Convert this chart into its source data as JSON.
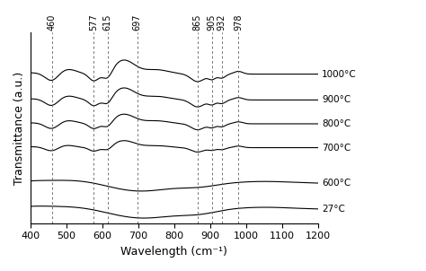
{
  "title": "",
  "xlabel": "Wavelength (cm⁻¹)",
  "ylabel": "Transmittance (a.u.)",
  "xlim": [
    400,
    1200
  ],
  "dashed_lines": [
    460,
    577,
    615,
    697,
    865,
    905,
    932,
    978
  ],
  "dashed_line_labels": [
    "460",
    "577",
    "615",
    "697",
    "865",
    "905",
    "932",
    "978"
  ],
  "temperatures": [
    "1000°C",
    "900°C",
    "800°C",
    "700°C",
    "600°C",
    "27°C"
  ],
  "offsets": [
    0.75,
    0.62,
    0.5,
    0.38,
    0.2,
    0.07
  ],
  "background_color": "#ffffff",
  "line_color": "#000000",
  "dashed_color": "#666666",
  "xticks": [
    400,
    500,
    600,
    700,
    800,
    900,
    1000,
    1100,
    1200
  ],
  "label_fontsize": 9,
  "tick_fontsize": 8,
  "dashed_label_fontsize": 7.0
}
